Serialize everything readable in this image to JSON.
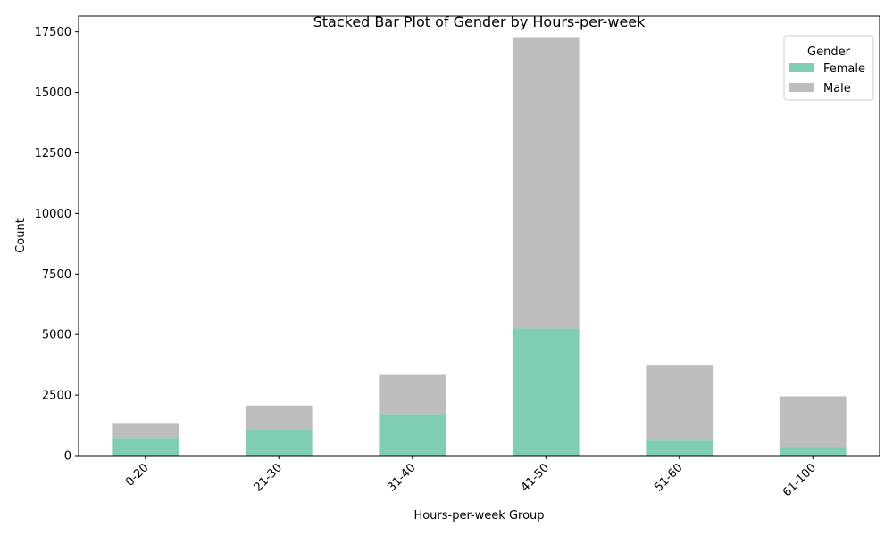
{
  "chart_data": {
    "type": "bar",
    "stacked": true,
    "title": "Stacked Bar Plot of Gender by Hours-per-week",
    "xlabel": "Hours-per-week Group",
    "ylabel": "Count",
    "categories": [
      "0-20",
      "21-30",
      "31-40",
      "41-50",
      "51-60",
      "61-100"
    ],
    "series": [
      {
        "name": "Female",
        "color": "#7fcdb4",
        "values": [
          730,
          1100,
          1720,
          5250,
          620,
          350
        ]
      },
      {
        "name": "Male",
        "color": "#bdbdbd",
        "values": [
          620,
          970,
          1610,
          12000,
          3130,
          2100
        ]
      }
    ],
    "ylim": [
      0,
      18150
    ],
    "yticks": [
      0,
      2500,
      5000,
      7500,
      10000,
      12500,
      15000,
      17500
    ],
    "ytick_labels": [
      "0",
      "2500",
      "5000",
      "7500",
      "10000",
      "12500",
      "15000",
      "17500"
    ],
    "legend": {
      "title": "Gender",
      "position": "top-right"
    },
    "grid": false
  }
}
